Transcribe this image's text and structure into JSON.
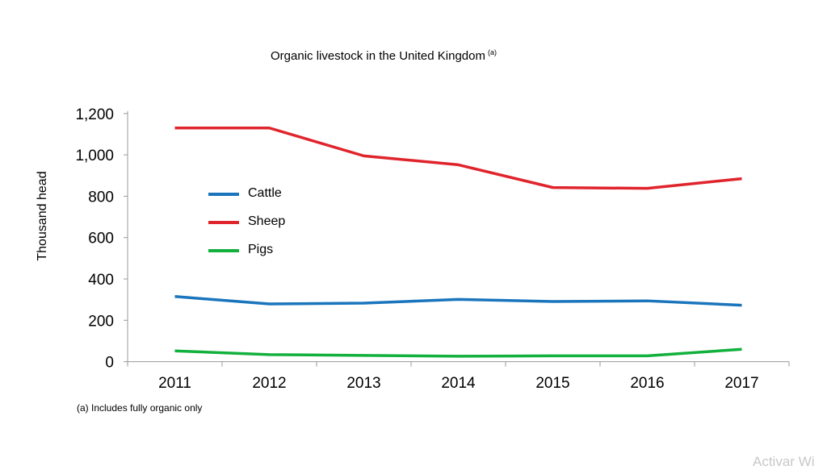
{
  "chart_data": {
    "type": "line",
    "title": "Organic livestock in the United Kingdom",
    "title_superscript": "(a)",
    "xlabel": "",
    "ylabel": "Thousand head",
    "categories": [
      "2011",
      "2012",
      "2013",
      "2014",
      "2015",
      "2016",
      "2017"
    ],
    "ylim": [
      0,
      1200
    ],
    "yticks": [
      0,
      200,
      400,
      600,
      800,
      1000,
      1200
    ],
    "ytick_labels": [
      "0",
      "200",
      "400",
      "600",
      "800",
      "1,000",
      "1,200"
    ],
    "grid": false,
    "legend_placement": "center-left inside",
    "series": [
      {
        "name": "Cattle",
        "color": "#1a75bc",
        "values": [
          315,
          279,
          283,
          301,
          291,
          294,
          273
        ]
      },
      {
        "name": "Sheep",
        "color": "#e0242c",
        "values": [
          1130,
          1130,
          995,
          952,
          842,
          838,
          885
        ]
      },
      {
        "name": "Pigs",
        "color": "#12b03c",
        "values": [
          52,
          34,
          30,
          26,
          28,
          28,
          60
        ]
      }
    ],
    "footnote": "(a) Includes fully organic only"
  },
  "watermark": "Activar Wi"
}
